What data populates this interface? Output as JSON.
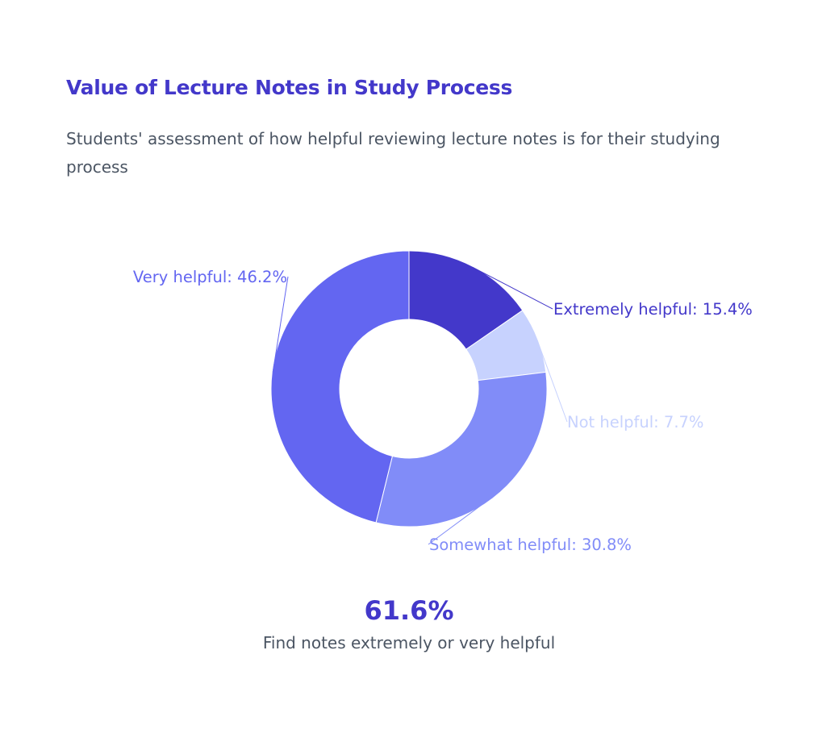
{
  "header": {
    "title": "Value of Lecture Notes in Study Process",
    "subtitle": "Students' assessment of how helpful reviewing lecture notes is for their studying process"
  },
  "chart_data": {
    "type": "pie",
    "variant": "donut",
    "slices": [
      {
        "label": "Extremely helpful",
        "value": 15.4,
        "color": "#4338ca",
        "display": "Extremely helpful: 15.4%"
      },
      {
        "label": "Not helpful",
        "value": 7.7,
        "color": "#c7d2fe",
        "display": "Not helpful: 7.7%"
      },
      {
        "label": "Somewhat helpful",
        "value": 30.8,
        "color": "#818cf8",
        "display": "Somewhat helpful: 30.8%"
      },
      {
        "label": "Very helpful",
        "value": 46.2,
        "color": "#6366f1",
        "display": "Very helpful: 46.2%"
      }
    ]
  },
  "summary": {
    "value": "61.6%",
    "caption": "Find notes extremely or very helpful"
  }
}
